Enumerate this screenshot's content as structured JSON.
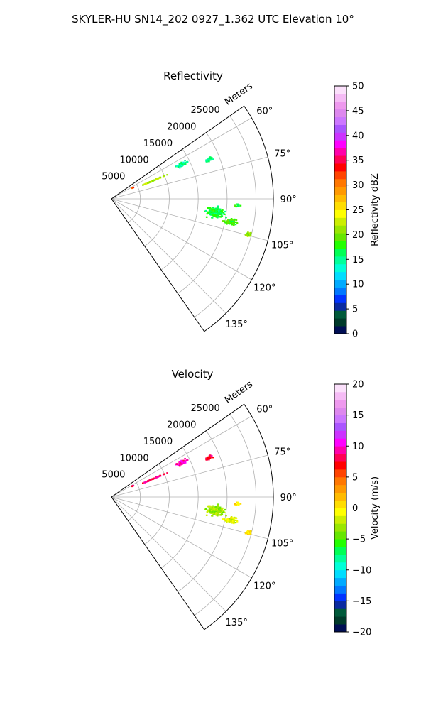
{
  "figure": {
    "title": "SKYLER-HU  SN14_202  0927_1.362 UTC Elevation 10°"
  },
  "chart_data": [
    {
      "type": "polar_sector",
      "title": "Reflectivity",
      "range_label": "Meters",
      "azimuth_range_deg": [
        55,
        145
      ],
      "range_max_m": 28000,
      "range_ticks": [
        5000,
        10000,
        15000,
        20000,
        25000
      ],
      "range_tick_labels": [
        "5000",
        "10000",
        "15000",
        "20000",
        "25000"
      ],
      "azimuth_ticks": [
        60,
        75,
        90,
        105,
        120,
        135
      ],
      "azimuth_tick_labels": [
        "60°",
        "75°",
        "90°",
        "105°",
        "120°",
        "135°"
      ],
      "grid": true,
      "colorbar": {
        "label": "Reflectivity dBZ",
        "min": 0,
        "max": 50,
        "ticks": [
          0,
          5,
          10,
          15,
          20,
          25,
          30,
          35,
          40,
          45,
          50
        ],
        "tick_labels": [
          "0",
          "5",
          "10",
          "15",
          "20",
          "25",
          "30",
          "35",
          "40",
          "45",
          "50"
        ],
        "colors": [
          "#000e54",
          "#003a2a",
          "#005a3a",
          "#0a2aa0",
          "#0033ff",
          "#0077ff",
          "#00aaff",
          "#00ddff",
          "#00ffd8",
          "#00ff9a",
          "#00ff55",
          "#22ff00",
          "#66e600",
          "#99e600",
          "#ccee00",
          "#ffff00",
          "#ffdd00",
          "#ffbb00",
          "#ff9900",
          "#ff7700",
          "#ff4400",
          "#ff0000",
          "#ff0055",
          "#ff00aa",
          "#ff00ff",
          "#cc33ff",
          "#aa55ff",
          "#cc77ff",
          "#dd88ee",
          "#ee99ee",
          "#f5bbf5",
          "#fbe0fb"
        ]
      },
      "clusters": [
        {
          "az": 64.0,
          "r": 13500,
          "da": 2.2,
          "dr": 1400,
          "value": 15,
          "n": 70
        },
        {
          "az": 68.0,
          "r": 18000,
          "da": 1.3,
          "dr": 1200,
          "value": 16,
          "n": 30
        },
        {
          "az": 66.5,
          "r": 8000,
          "da": 0.5,
          "dr": 3200,
          "value": 22,
          "n": 60
        },
        {
          "az": 62.5,
          "r": 4200,
          "da": 0.5,
          "dr": 700,
          "value": 32,
          "n": 5
        },
        {
          "az": 97.5,
          "r": 18200,
          "da": 3.8,
          "dr": 2200,
          "value": 17,
          "n": 220
        },
        {
          "az": 101.0,
          "r": 21000,
          "da": 1.8,
          "dr": 1500,
          "value": 19,
          "n": 90
        },
        {
          "az": 104.5,
          "r": 24500,
          "da": 1.2,
          "dr": 700,
          "value": 21,
          "n": 40
        },
        {
          "az": 93.0,
          "r": 21800,
          "da": 1.0,
          "dr": 900,
          "value": 17,
          "n": 15
        }
      ]
    },
    {
      "type": "polar_sector",
      "title": "Velocity",
      "range_label": "Meters",
      "azimuth_range_deg": [
        55,
        145
      ],
      "range_max_m": 28000,
      "range_ticks": [
        5000,
        10000,
        15000,
        20000,
        25000
      ],
      "range_tick_labels": [
        "5000",
        "10000",
        "15000",
        "20000",
        "25000"
      ],
      "azimuth_ticks": [
        60,
        75,
        90,
        105,
        120,
        135
      ],
      "azimuth_tick_labels": [
        "60°",
        "75°",
        "90°",
        "105°",
        "120°",
        "135°"
      ],
      "grid": true,
      "colorbar": {
        "label": "Velocity (m/s)",
        "min": -20,
        "max": 20,
        "ticks": [
          -20,
          -15,
          -10,
          -5,
          0,
          5,
          10,
          15,
          20
        ],
        "tick_labels": [
          "−20",
          "−15",
          "−10",
          "−5",
          "0",
          "5",
          "10",
          "15",
          "20"
        ],
        "colors": [
          "#000e54",
          "#003a2a",
          "#005a3a",
          "#0a2aa0",
          "#0033ff",
          "#0077ff",
          "#00aaff",
          "#00ddff",
          "#00ffd8",
          "#00ff9a",
          "#00ff55",
          "#22ff00",
          "#66e600",
          "#99e600",
          "#ccee00",
          "#ffff00",
          "#ffdd00",
          "#ffbb00",
          "#ff9900",
          "#ff7700",
          "#ff4400",
          "#ff0000",
          "#ff0055",
          "#ff00aa",
          "#ff00ff",
          "#cc33ff",
          "#aa55ff",
          "#cc77ff",
          "#dd88ee",
          "#ee99ee",
          "#f5bbf5",
          "#fbe0fb"
        ]
      },
      "clusters": [
        {
          "az": 64.0,
          "r": 13500,
          "da": 2.2,
          "dr": 1400,
          "value": 9.5,
          "n": 70
        },
        {
          "az": 68.0,
          "r": 18000,
          "da": 1.3,
          "dr": 1200,
          "value": 8,
          "n": 30
        },
        {
          "az": 66.5,
          "r": 8000,
          "da": 0.5,
          "dr": 3200,
          "value": 8.5,
          "n": 60
        },
        {
          "az": 62.5,
          "r": 4200,
          "da": 0.5,
          "dr": 700,
          "value": 8,
          "n": 5
        },
        {
          "az": 97.5,
          "r": 18200,
          "da": 3.8,
          "dr": 2200,
          "value": -3,
          "n": 220
        },
        {
          "az": 101.0,
          "r": 21000,
          "da": 1.8,
          "dr": 1500,
          "value": -1,
          "n": 90
        },
        {
          "az": 104.5,
          "r": 24500,
          "da": 1.2,
          "dr": 700,
          "value": 0.5,
          "n": 40
        },
        {
          "az": 93.0,
          "r": 21800,
          "da": 1.0,
          "dr": 900,
          "value": 0,
          "n": 15
        }
      ]
    }
  ]
}
